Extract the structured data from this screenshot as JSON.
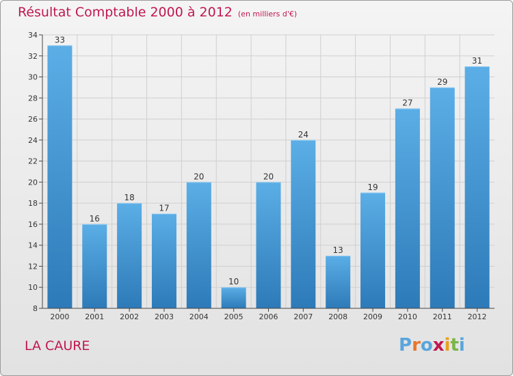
{
  "header": {
    "title": "Résultat Comptable 2000 à 2012",
    "subtitle": "(en milliers d'€)"
  },
  "footer": {
    "city": "LA CAURE",
    "logo": "Proxiti",
    "logo_colors": [
      "#5aa5dc",
      "#e8762c",
      "#5aa5dc",
      "#c0174f",
      "#e8a01c",
      "#7ab648",
      "#5aa5dc"
    ]
  },
  "colors": {
    "title": "#c0174f",
    "bar_light": "#5baee6",
    "bar_dark": "#2d7ab8",
    "axis": "#444444",
    "grid": "#cfcfcf"
  },
  "chart_data": {
    "type": "bar",
    "categories": [
      "2000",
      "2001",
      "2002",
      "2003",
      "2004",
      "2005",
      "2006",
      "2007",
      "2008",
      "2009",
      "2010",
      "2011",
      "2012"
    ],
    "values": [
      33,
      16,
      18,
      17,
      20,
      10,
      20,
      24,
      13,
      19,
      27,
      29,
      31
    ],
    "yticks": [
      8,
      10,
      12,
      14,
      16,
      18,
      20,
      22,
      24,
      26,
      28,
      30,
      32,
      34
    ],
    "ylim": [
      8,
      34
    ],
    "grid": true,
    "title": "Résultat Comptable 2000 à 2012",
    "xlabel": "",
    "ylabel": ""
  }
}
